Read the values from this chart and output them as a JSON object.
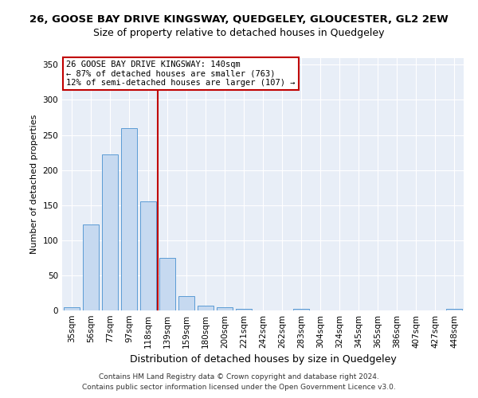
{
  "title": "26, GOOSE BAY DRIVE KINGSWAY, QUEDGELEY, GLOUCESTER, GL2 2EW",
  "subtitle": "Size of property relative to detached houses in Quedgeley",
  "xlabel": "Distribution of detached houses by size in Quedgeley",
  "ylabel": "Number of detached properties",
  "bar_labels": [
    "35sqm",
    "56sqm",
    "77sqm",
    "97sqm",
    "118sqm",
    "139sqm",
    "159sqm",
    "180sqm",
    "200sqm",
    "221sqm",
    "242sqm",
    "262sqm",
    "283sqm",
    "304sqm",
    "324sqm",
    "345sqm",
    "365sqm",
    "386sqm",
    "407sqm",
    "427sqm",
    "448sqm"
  ],
  "bar_values": [
    5,
    122,
    222,
    260,
    155,
    75,
    20,
    7,
    4,
    2,
    0,
    0,
    2,
    0,
    0,
    0,
    0,
    0,
    0,
    0,
    2
  ],
  "bar_color": "#c6d9f0",
  "bar_edge_color": "#5b9bd5",
  "vline_x_index": 5,
  "vline_color": "#c00000",
  "ylim": [
    0,
    360
  ],
  "yticks": [
    0,
    50,
    100,
    150,
    200,
    250,
    300,
    350
  ],
  "annotation_text": "26 GOOSE BAY DRIVE KINGSWAY: 140sqm\n← 87% of detached houses are smaller (763)\n12% of semi-detached houses are larger (107) →",
  "annotation_box_color": "#ffffff",
  "annotation_box_edge": "#c00000",
  "plot_bg_color": "#e8eef7",
  "fig_bg_color": "#ffffff",
  "footer1": "Contains HM Land Registry data © Crown copyright and database right 2024.",
  "footer2": "Contains public sector information licensed under the Open Government Licence v3.0.",
  "title_fontsize": 9.5,
  "subtitle_fontsize": 9.0,
  "ylabel_fontsize": 8,
  "xlabel_fontsize": 9,
  "tick_fontsize": 7.5,
  "footer_fontsize": 6.5,
  "annotation_fontsize": 7.5
}
